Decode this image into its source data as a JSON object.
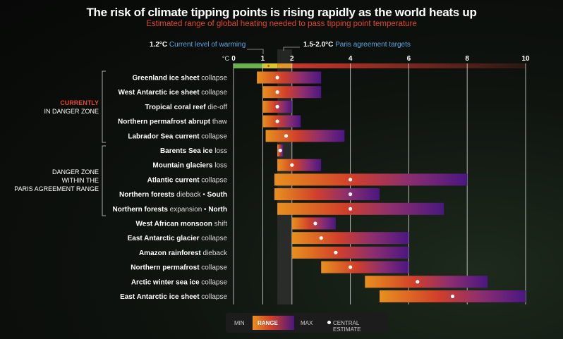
{
  "header": {
    "title": "The risk of climate tipping points is rising rapidly as the world heats up",
    "subtitle": "Estimated range of global heating needed to pass tipping point temperature"
  },
  "annotations": {
    "current_value": "1.2°C",
    "current_text": "Current level of warming",
    "paris_value": "1.5-2.0°C",
    "paris_text": "Paris agreement targets"
  },
  "groups": [
    {
      "line1": "CURRENTLY",
      "line2": "IN DANGER ZONE"
    },
    {
      "line1": "DANGER ZONE",
      "line2": "WITHIN THE",
      "line3": "PARIS AGREEMENT RANGE"
    }
  ],
  "legend": {
    "min": "MIN",
    "range": "RANGE",
    "max": "MAX",
    "central": "CENTRAL ESTIMATE"
  },
  "colors": {
    "orange": "#e8901e",
    "red": "#d0402a",
    "purple": "#4a1780",
    "green": "#6ab04c",
    "yellow": "#d8c62a"
  },
  "chart_data": {
    "type": "range-bar",
    "title": "The risk of climate tipping points is rising rapidly as the world heats up",
    "xlabel": "°C",
    "xlim": [
      0,
      10
    ],
    "ticks": [
      0,
      1,
      2,
      4,
      6,
      8,
      10
    ],
    "current_warming": 1.2,
    "paris_range": [
      1.5,
      2.0
    ],
    "rows": [
      {
        "bold": "Greenland ice sheet",
        "rest": " collapse",
        "min": 0.8,
        "max": 3.0,
        "central": 1.5
      },
      {
        "bold": "West Antarctic ice sheet",
        "rest": " collapse",
        "min": 1.0,
        "max": 3.0,
        "central": 1.5
      },
      {
        "bold": "Tropical coral reef",
        "rest": " die-off",
        "min": 1.0,
        "max": 2.0,
        "central": 1.5
      },
      {
        "bold": "Northern permafrost abrupt",
        "rest": " thaw",
        "min": 1.0,
        "max": 2.3,
        "central": 1.5
      },
      {
        "bold": "Labrador Sea current",
        "rest": " collapse",
        "min": 1.1,
        "max": 3.8,
        "central": 1.8
      },
      {
        "bold": "Barents Sea ice",
        "rest": " loss",
        "min": 1.5,
        "max": 1.7,
        "central": 1.6
      },
      {
        "bold": "Mountain glaciers",
        "rest": " loss",
        "min": 1.5,
        "max": 3.0,
        "central": 2.0
      },
      {
        "bold": "Atlantic current",
        "rest": " collapse",
        "min": 1.4,
        "max": 8.0,
        "central": 4.0
      },
      {
        "bold": "Northern forests",
        "rest": " dieback • ",
        "bold2": "South",
        "min": 1.4,
        "max": 5.0,
        "central": 4.0
      },
      {
        "bold": "Northern forests",
        "rest": " expansion • ",
        "bold2": "North",
        "min": 1.5,
        "max": 7.2,
        "central": 4.0
      },
      {
        "bold": "West African monsoon",
        "rest": " shift",
        "min": 2.0,
        "max": 3.5,
        "central": 2.8
      },
      {
        "bold": "East Antarctic glacier",
        "rest": " collapse",
        "min": 2.0,
        "max": 6.0,
        "central": 3.0
      },
      {
        "bold": "Amazon rainforest",
        "rest": " dieback",
        "min": 2.0,
        "max": 6.0,
        "central": 3.5
      },
      {
        "bold": "Northern permafrost",
        "rest": " collapse",
        "min": 3.0,
        "max": 6.0,
        "central": 4.0
      },
      {
        "bold": "Arctic winter sea ice",
        "rest": " collapse",
        "min": 4.5,
        "max": 8.7,
        "central": 6.3
      },
      {
        "bold": "East Antarctic ice sheet",
        "rest": " collapse",
        "min": 5.0,
        "max": 10.0,
        "central": 7.5
      }
    ]
  }
}
